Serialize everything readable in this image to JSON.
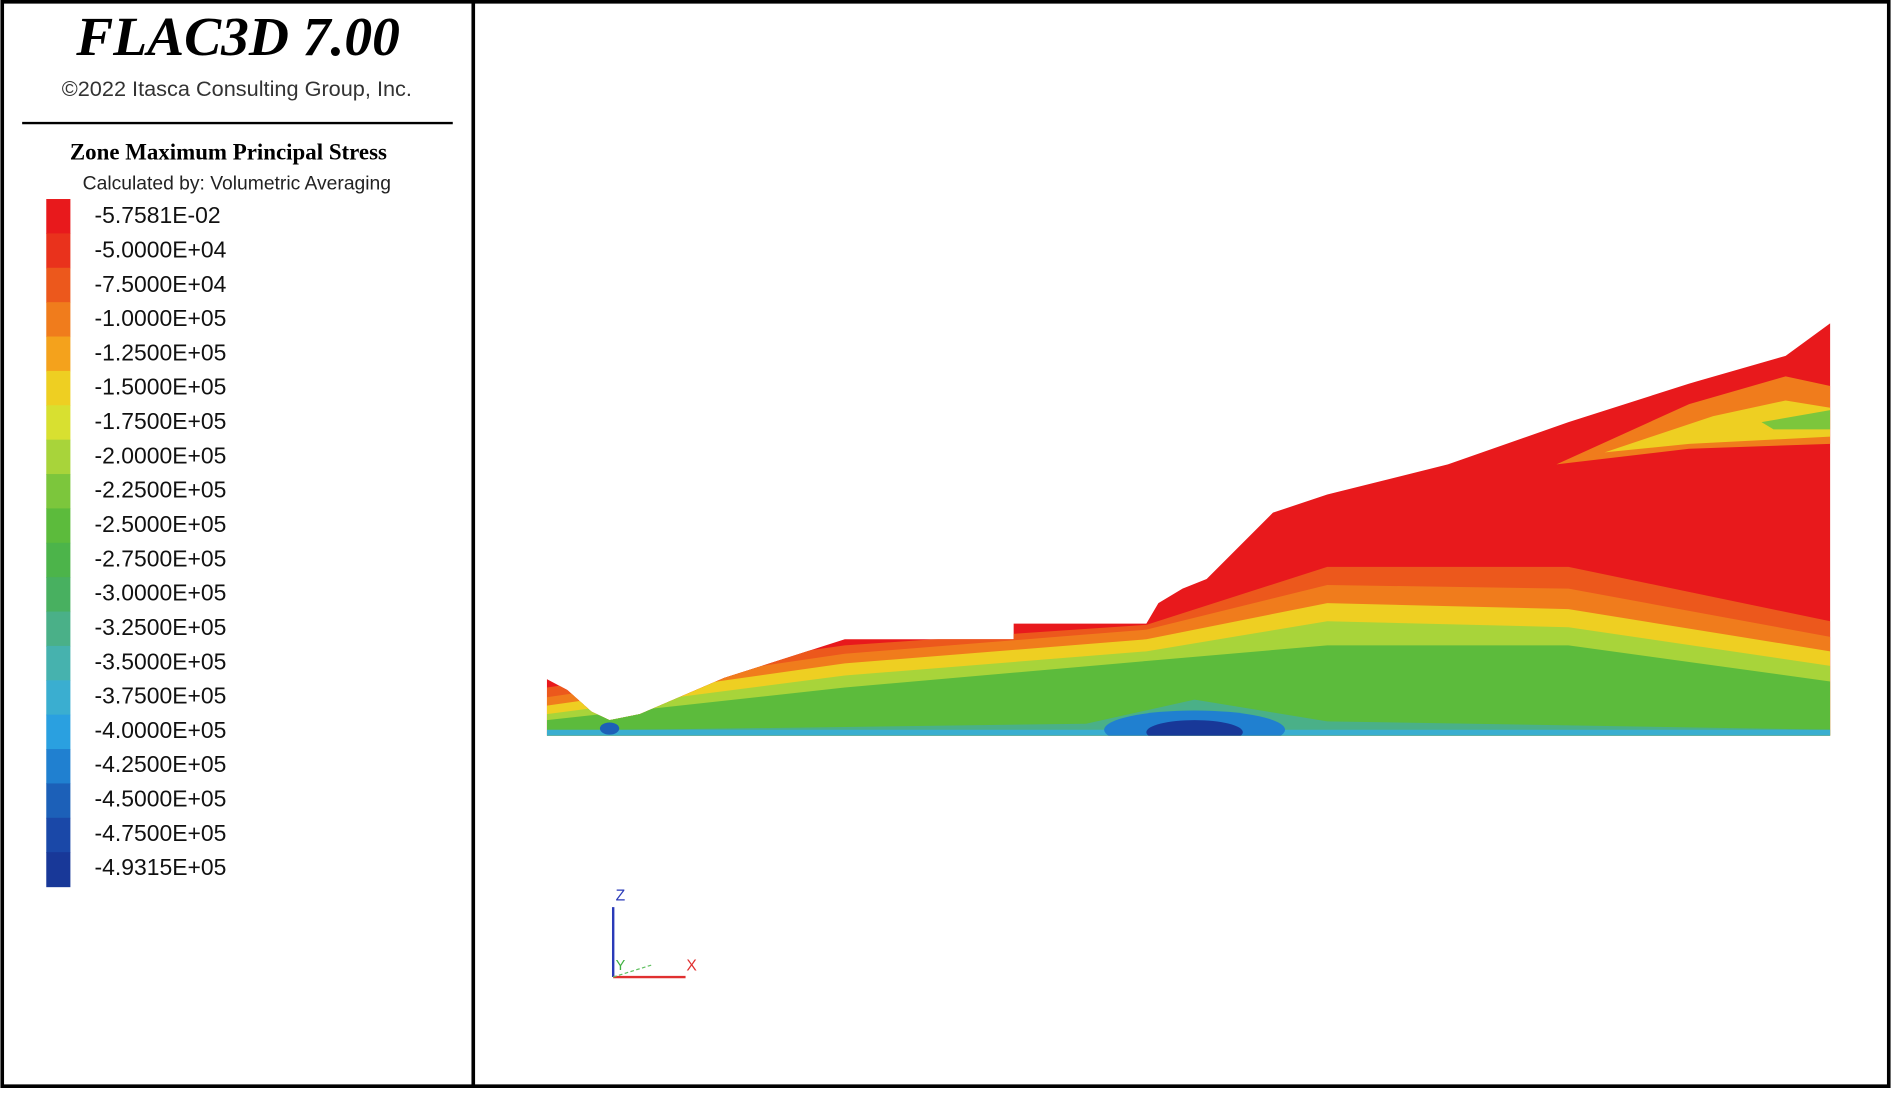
{
  "header": {
    "title": "FLAC3D 7.00",
    "copyright": "©2022 Itasca Consulting Group, Inc."
  },
  "legend": {
    "title": "Zone Maximum Principal Stress",
    "subtitle": "Calculated by: Volumetric Averaging",
    "items": [
      {
        "label": "-5.7581E-02",
        "color": "#e8191c"
      },
      {
        "label": "-5.0000E+04",
        "color": "#e9321c"
      },
      {
        "label": "-7.5000E+04",
        "color": "#ec581c"
      },
      {
        "label": "-1.0000E+05",
        "color": "#f07c1c"
      },
      {
        "label": "-1.2500E+05",
        "color": "#f4a21c"
      },
      {
        "label": "-1.5000E+05",
        "color": "#eecf22"
      },
      {
        "label": "-1.7500E+05",
        "color": "#d8e030"
      },
      {
        "label": "-2.0000E+05",
        "color": "#a8d43a"
      },
      {
        "label": "-2.2500E+05",
        "color": "#7cc63c"
      },
      {
        "label": "-2.5000E+05",
        "color": "#5cbb3c"
      },
      {
        "label": "-2.7500E+05",
        "color": "#4cb44a"
      },
      {
        "label": "-3.0000E+05",
        "color": "#48b060"
      },
      {
        "label": "-3.2500E+05",
        "color": "#4ab088"
      },
      {
        "label": "-3.5000E+05",
        "color": "#46b2ae"
      },
      {
        "label": "-3.7500E+05",
        "color": "#3aaed0"
      },
      {
        "label": "-4.0000E+05",
        "color": "#2aa0e0"
      },
      {
        "label": "-4.2500E+05",
        "color": "#2080d0"
      },
      {
        "label": "-4.5000E+05",
        "color": "#1c60b8"
      },
      {
        "label": "-4.7500E+05",
        "color": "#1a48a8"
      },
      {
        "label": "-4.9315E+05",
        "color": "#183898"
      }
    ]
  },
  "axes": {
    "z": "Z",
    "y": "Y",
    "x": "X"
  }
}
